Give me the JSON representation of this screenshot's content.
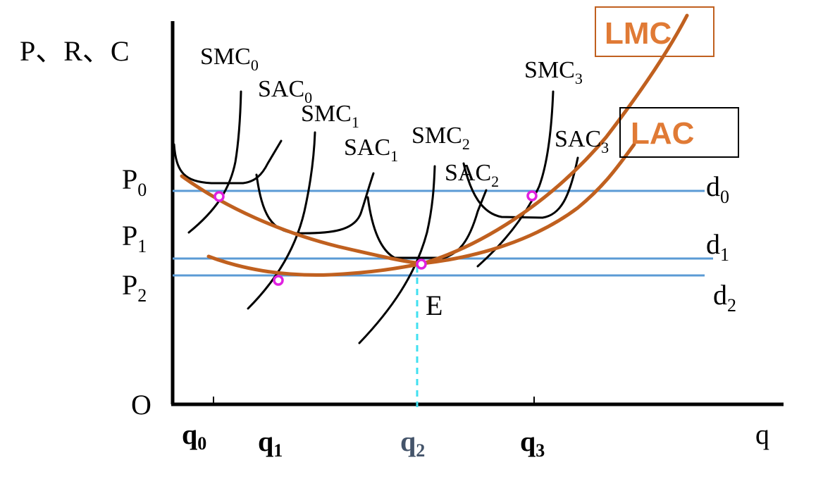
{
  "axes": {
    "y_label": "P、R、C",
    "origin_label": "O",
    "x_label": "q"
  },
  "price_levels": [
    {
      "base": "P",
      "sub": "0"
    },
    {
      "base": "P",
      "sub": "1"
    },
    {
      "base": "P",
      "sub": "2"
    }
  ],
  "demand_labels": [
    {
      "base": "d",
      "sub": "0"
    },
    {
      "base": "d",
      "sub": "1"
    },
    {
      "base": "d",
      "sub": "2"
    }
  ],
  "quantity_labels": [
    {
      "base": "q",
      "sub": "0"
    },
    {
      "base": "q",
      "sub": "1"
    },
    {
      "base": "q",
      "sub": "2"
    },
    {
      "base": "q",
      "sub": "3"
    }
  ],
  "short_run_curves": [
    {
      "base": "SMC",
      "sub": "0"
    },
    {
      "base": "SAC",
      "sub": "0"
    },
    {
      "base": "SMC",
      "sub": "1"
    },
    {
      "base": "SAC",
      "sub": "1"
    },
    {
      "base": "SMC",
      "sub": "2"
    },
    {
      "base": "SAC",
      "sub": "2"
    },
    {
      "base": "SMC",
      "sub": "3"
    },
    {
      "base": "SAC",
      "sub": "3"
    }
  ],
  "long_run_curves": {
    "lmc": "LMC",
    "lac": "LAC"
  },
  "equilibrium_label": "E",
  "colors": {
    "long_run_curve": "#C0601F",
    "long_run_label": "#E07A35",
    "demand_line": "#5B9BD5",
    "marker": "#E020E0",
    "dashed_guide": "#40E0F0",
    "q2_label": "#44546A"
  }
}
